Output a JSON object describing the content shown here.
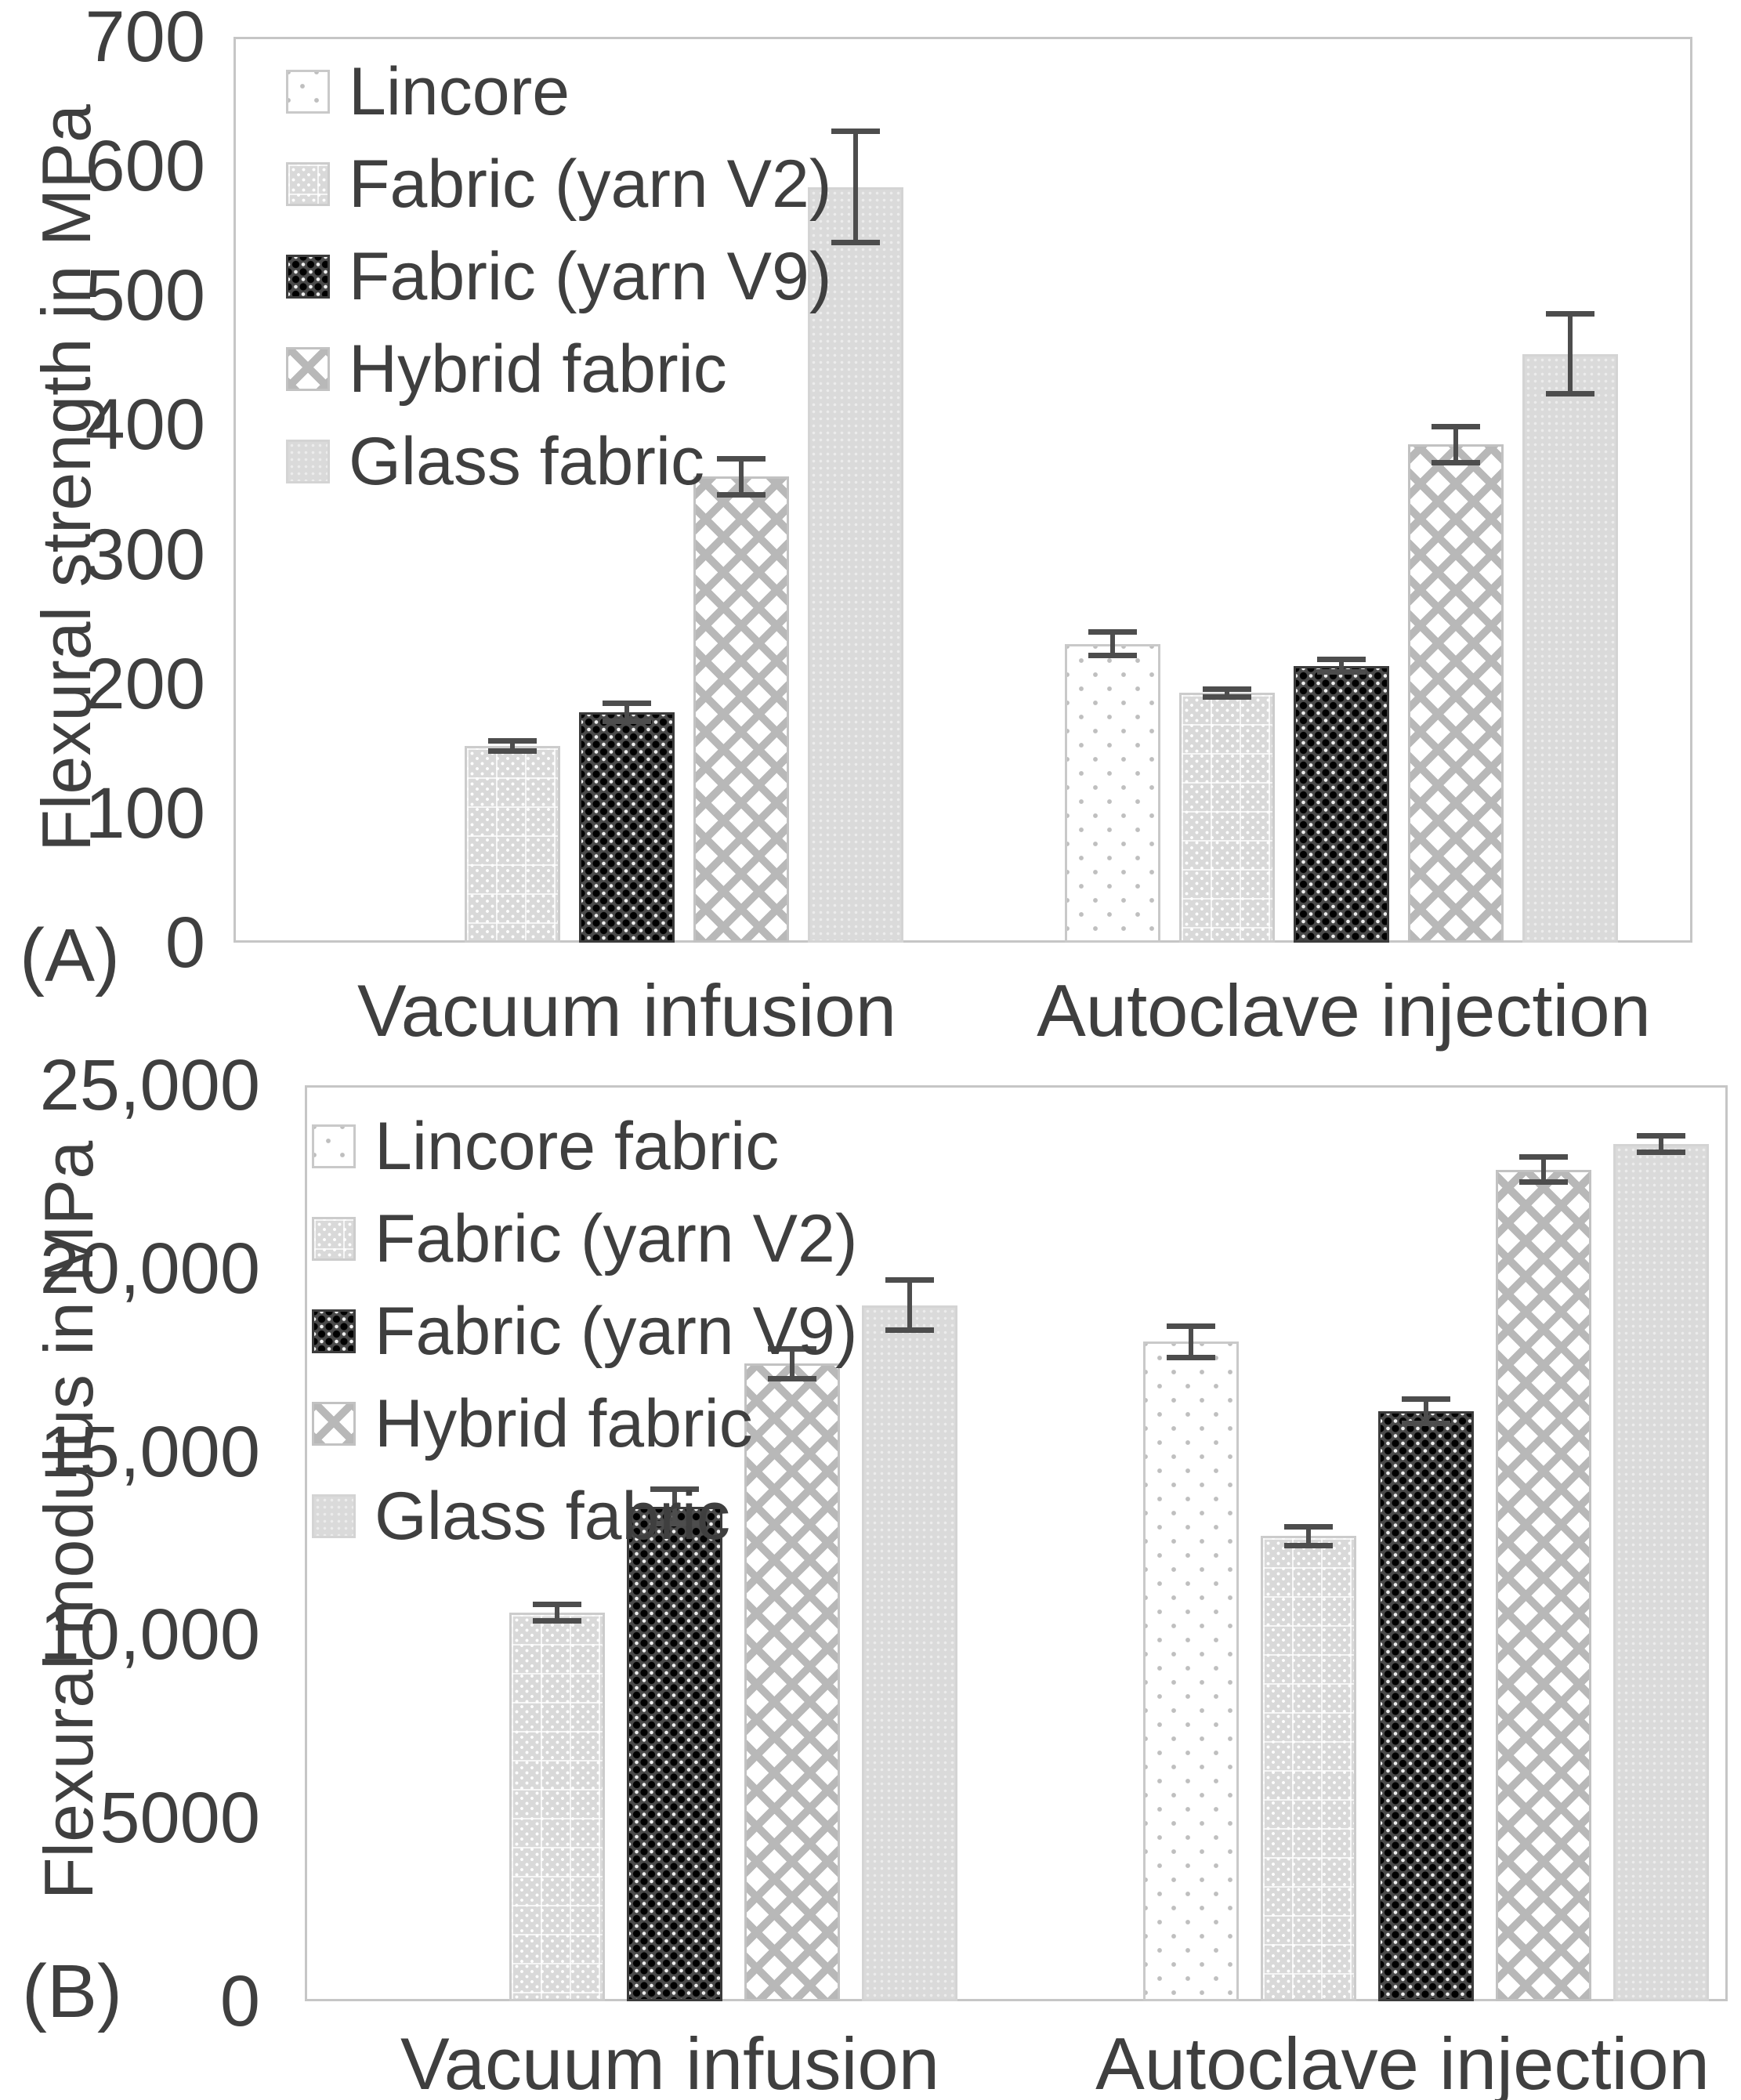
{
  "figure": {
    "background": "#ffffff",
    "description": "Two-panel grouped bar chart of flexural properties with error bars"
  },
  "colors": {
    "text": "#3f3f3f",
    "plot_border": "#c6c6c6",
    "error_bar": "#4d4d4d",
    "light_gray_fill": "#d9d9d9",
    "dark_fill": "#4a4a4a",
    "pattern_gray": "#b8b8b8"
  },
  "chart_data": [
    {
      "type": "bar",
      "panel_letter": "(A)",
      "title": "",
      "xlabel": "",
      "ylabel": "Flexural strength in MPa",
      "ylim": [
        0,
        700
      ],
      "grid": false,
      "legend_position": "top-left",
      "y_ticks": [
        {
          "value": 0,
          "label": "0"
        },
        {
          "value": 100,
          "label": "100"
        },
        {
          "value": 200,
          "label": "200"
        },
        {
          "value": 300,
          "label": "300"
        },
        {
          "value": 400,
          "label": "400"
        },
        {
          "value": 500,
          "label": "500"
        },
        {
          "value": 600,
          "label": "600"
        },
        {
          "value": 700,
          "label": "700"
        }
      ],
      "categories": [
        "Vacuum infusion",
        "Autoclave injection"
      ],
      "series": [
        {
          "name": "Lincore",
          "pattern": "lincore",
          "values": [
            null,
            231
          ],
          "errors": [
            null,
            11
          ]
        },
        {
          "name": "Fabric (yarn V2)",
          "pattern": "v2",
          "values": [
            152,
            193
          ],
          "errors": [
            6,
            5
          ]
        },
        {
          "name": "Fabric (yarn V9)",
          "pattern": "v9",
          "values": [
            178,
            214
          ],
          "errors": [
            9,
            7
          ]
        },
        {
          "name": "Hybrid fabric",
          "pattern": "hybrid",
          "values": [
            360,
            385
          ],
          "errors": [
            16,
            16
          ]
        },
        {
          "name": "Glass fabric",
          "pattern": "glass",
          "values": [
            584,
            455
          ],
          "errors": [
            45,
            33
          ]
        }
      ]
    },
    {
      "type": "bar",
      "panel_letter": "(B)",
      "title": "",
      "xlabel": "",
      "ylabel": "Flexural modulus in MPa",
      "ylim": [
        0,
        25000
      ],
      "grid": false,
      "legend_position": "top-left",
      "y_ticks": [
        {
          "value": 0,
          "label": "0"
        },
        {
          "value": 5000,
          "label": "5000"
        },
        {
          "value": 10000,
          "label": "10,000"
        },
        {
          "value": 15000,
          "label": "15,000"
        },
        {
          "value": 20000,
          "label": "20,000"
        },
        {
          "value": 25000,
          "label": "25,000"
        }
      ],
      "categories": [
        "Vacuum infusion",
        "Autoclave injection"
      ],
      "series": [
        {
          "name": "Lincore fabric",
          "pattern": "lincore",
          "values": [
            null,
            18000
          ],
          "errors": [
            null,
            500
          ]
        },
        {
          "name": "Fabric (yarn V2)",
          "pattern": "v2",
          "values": [
            10600,
            12700
          ],
          "errors": [
            300,
            330
          ]
        },
        {
          "name": "Fabric (yarn V9)",
          "pattern": "v9",
          "values": [
            13500,
            16100
          ],
          "errors": [
            550,
            400
          ]
        },
        {
          "name": "Hybrid fabric",
          "pattern": "hybrid",
          "values": [
            17400,
            22700
          ],
          "errors": [
            480,
            420
          ]
        },
        {
          "name": "Glass fabric",
          "pattern": "glass",
          "values": [
            19000,
            23400
          ],
          "errors": [
            750,
            300
          ]
        }
      ]
    }
  ]
}
